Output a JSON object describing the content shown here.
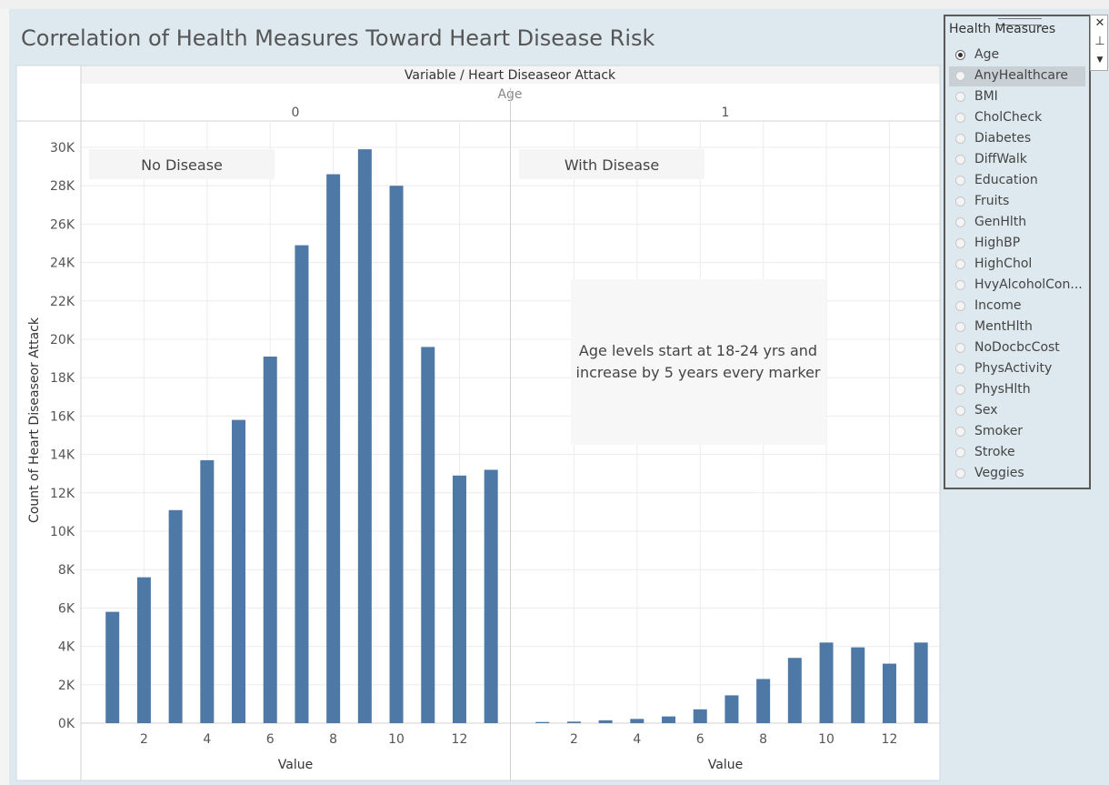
{
  "dashboard": {
    "title": "Correlation of Health Measures Toward Heart Disease Risk"
  },
  "chart_data": {
    "type": "bar",
    "header_title": "Variable / Heart Diseaseor Attack",
    "variable_label": "Age",
    "panes": [
      {
        "header": "0",
        "annotation": "No Disease",
        "x": [
          1,
          2,
          3,
          4,
          5,
          6,
          7,
          8,
          9,
          10,
          11,
          12,
          13
        ],
        "values": [
          5800,
          7600,
          11100,
          13700,
          15800,
          19100,
          24900,
          28600,
          29900,
          28000,
          19600,
          12900,
          13200
        ]
      },
      {
        "header": "1",
        "annotation": "With Disease",
        "x": [
          1,
          2,
          3,
          4,
          5,
          6,
          7,
          8,
          9,
          10,
          11,
          12,
          13
        ],
        "values": [
          60,
          80,
          150,
          220,
          350,
          720,
          1450,
          2300,
          3400,
          4200,
          3950,
          3100,
          4200
        ]
      }
    ],
    "xlabel": "Value",
    "ylabel": "Count of Heart Diseaseor Attack",
    "yticks": [
      0,
      2000,
      4000,
      6000,
      8000,
      10000,
      12000,
      14000,
      16000,
      18000,
      20000,
      22000,
      24000,
      26000,
      28000,
      30000
    ],
    "ytick_labels": [
      "0K",
      "2K",
      "4K",
      "6K",
      "8K",
      "10K",
      "12K",
      "14K",
      "16K",
      "18K",
      "20K",
      "22K",
      "24K",
      "26K",
      "28K",
      "30K"
    ],
    "xticks": [
      2,
      4,
      6,
      8,
      10,
      12
    ],
    "ylim": [
      0,
      30000
    ],
    "xlim": [
      0,
      13.6
    ],
    "bar_color": "#4e79a7",
    "grid": true,
    "note": "Age levels start at 18-24 yrs and increase by 5 years every marker"
  },
  "filter_panel": {
    "title": "Health Measures",
    "selected": "Age",
    "hovered": "AnyHealthcare",
    "options": [
      "Age",
      "AnyHealthcare",
      "BMI",
      "CholCheck",
      "Diabetes",
      "DiffWalk",
      "Education",
      "Fruits",
      "GenHlth",
      "HighBP",
      "HighChol",
      "HvyAlcoholCon...",
      "Income",
      "MentHlth",
      "NoDocbcCost",
      "PhysActivity",
      "PhysHlth",
      "Sex",
      "Smoker",
      "Stroke",
      "Veggies"
    ],
    "tools": [
      "close-icon",
      "pin-icon",
      "dropdown-icon"
    ]
  }
}
